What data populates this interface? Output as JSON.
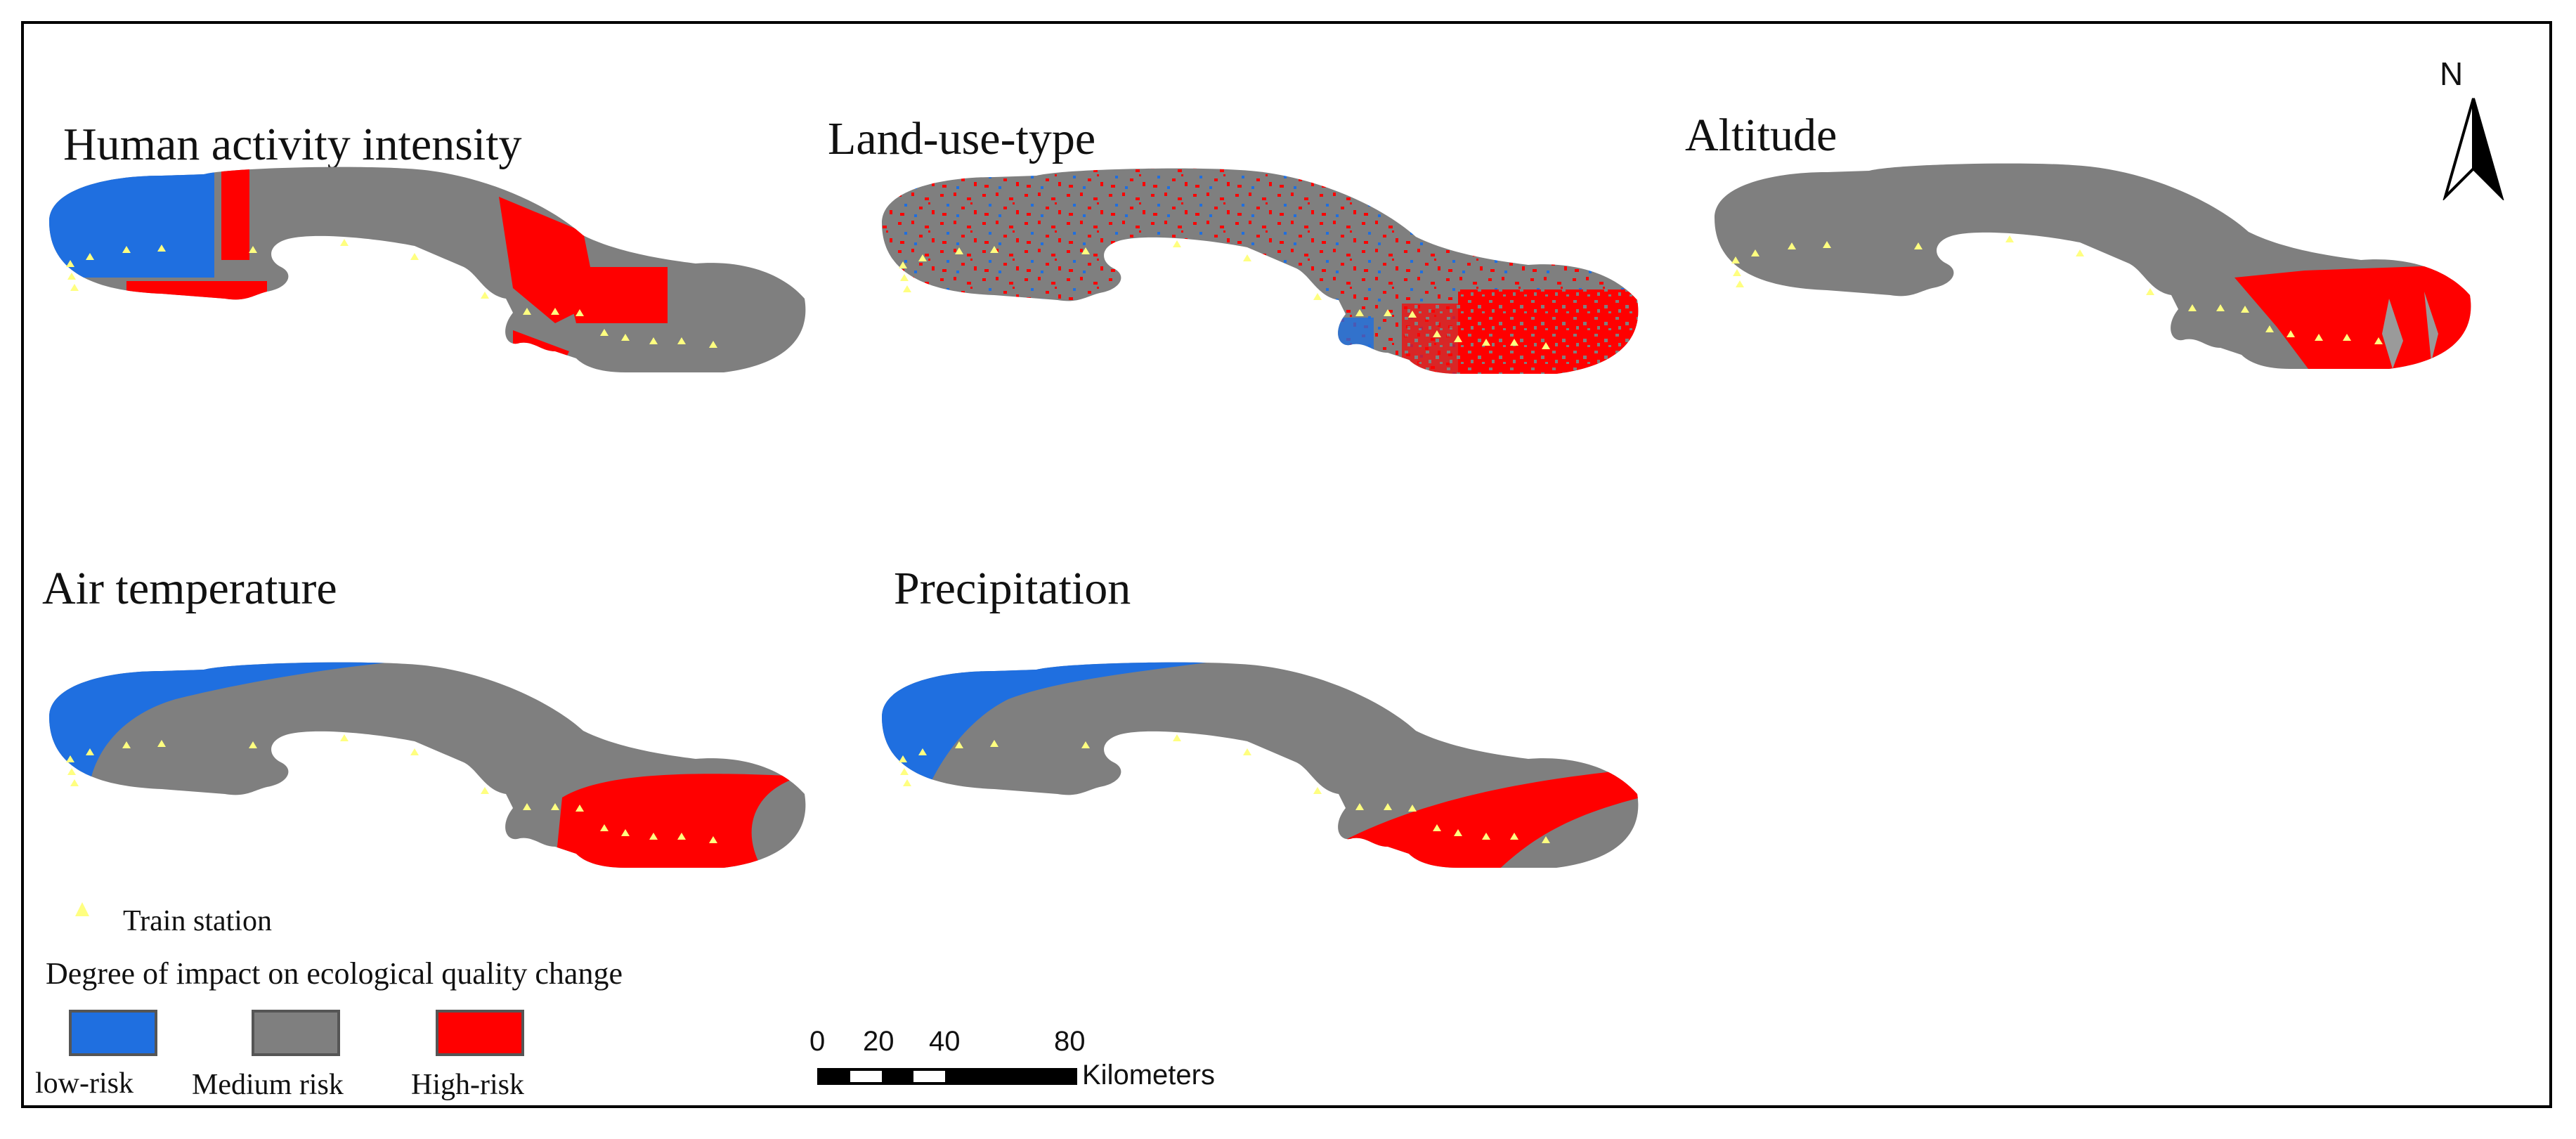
{
  "panels": [
    {
      "title": "Human activity intensity"
    },
    {
      "title": "Land-use-type"
    },
    {
      "title": "Altitude"
    },
    {
      "title": "Air temperature"
    },
    {
      "title": "Precipitation"
    }
  ],
  "north_arrow": {
    "label": "N"
  },
  "legend": {
    "station_label": "Train station",
    "heading": "Degree of impact on ecological quality change",
    "classes": [
      {
        "label": "low-risk",
        "color": "#1f6fe0"
      },
      {
        "label": "Medium risk",
        "color": "#7f7f7f"
      },
      {
        "label": "High-risk",
        "color": "#ff0000"
      }
    ],
    "station_color": "#ffff80"
  },
  "scale_bar": {
    "ticks": [
      "0",
      "20",
      "40",
      "80"
    ],
    "unit": "Kilometers"
  }
}
